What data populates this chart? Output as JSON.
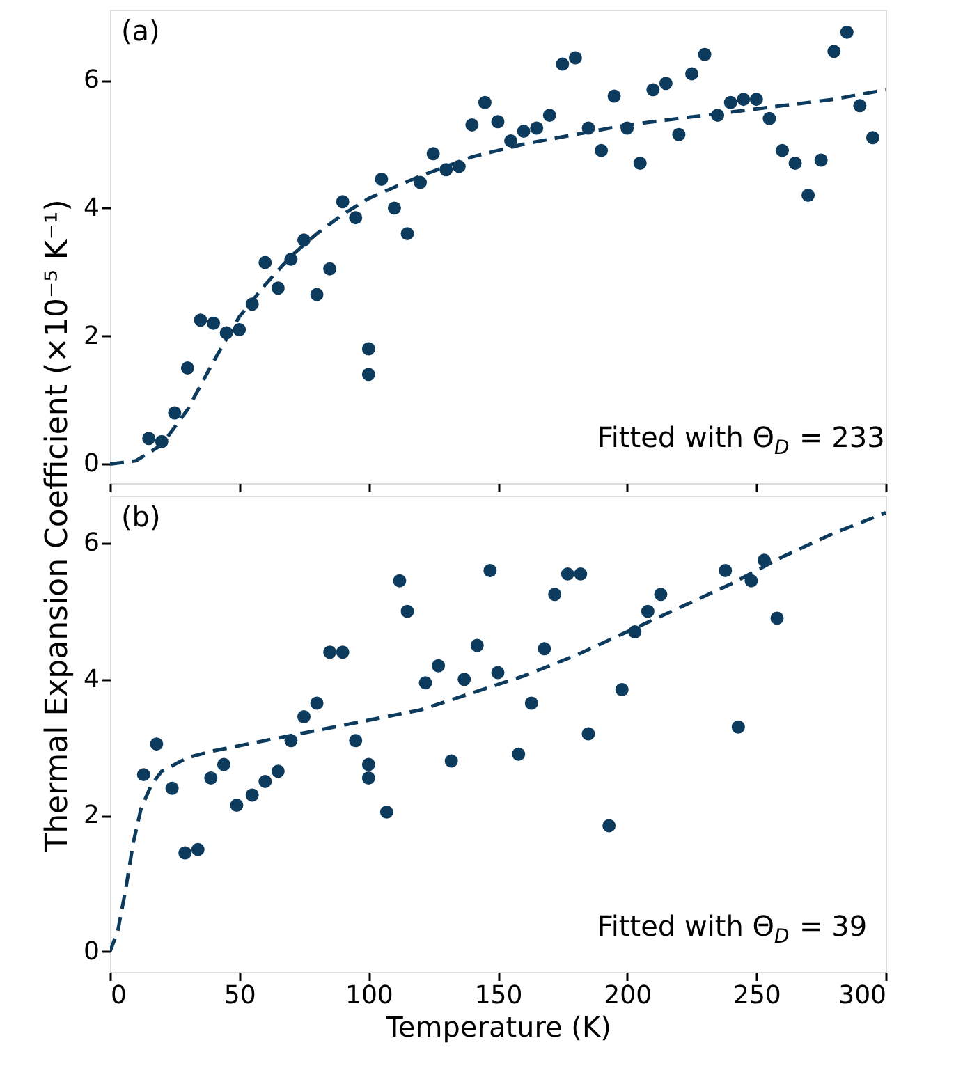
{
  "chart_data": [
    {
      "type": "scatter",
      "ylabel": "Thermal Expansion Coefficient (×10⁻⁵ K⁻¹)",
      "annotations": [
        "(a)",
        "Fitted with Θ$_{D}$ = 233"
      ],
      "xlim": [
        0,
        300
      ],
      "xticks": [
        0,
        50,
        100,
        150,
        200,
        250,
        300
      ],
      "ylim": [
        -0.3,
        7.1
      ],
      "yticks": [
        0,
        2,
        4,
        6
      ],
      "tick_labels": "y",
      "series": [
        {
          "type": "scatter",
          "marker": "circle",
          "color": "#0d3b5e",
          "x": [
            15,
            20,
            25,
            30,
            35,
            40,
            45,
            50,
            55,
            60,
            65,
            70,
            75,
            80,
            85,
            90,
            95,
            100,
            100,
            105,
            110,
            115,
            120,
            125,
            130,
            135,
            140,
            145,
            150,
            155,
            160,
            165,
            170,
            175,
            180,
            185,
            190,
            195,
            200,
            205,
            210,
            215,
            220,
            225,
            230,
            235,
            240,
            245,
            250,
            255,
            260,
            265,
            270,
            275,
            280,
            285,
            290,
            295
          ],
          "values": [
            0.4,
            0.35,
            0.8,
            1.5,
            2.25,
            2.2,
            2.05,
            2.1,
            2.5,
            3.15,
            2.75,
            3.2,
            3.5,
            2.65,
            3.05,
            4.1,
            3.85,
            1.8,
            1.4,
            4.45,
            4.0,
            3.6,
            4.4,
            4.85,
            4.6,
            4.65,
            5.3,
            5.65,
            5.35,
            5.05,
            5.2,
            5.25,
            5.45,
            6.25,
            6.35,
            5.25,
            4.9,
            5.75,
            5.25,
            4.7,
            5.85,
            5.95,
            5.15,
            6.1,
            6.4,
            5.45,
            5.65,
            5.7,
            5.7,
            5.4,
            4.9,
            4.7,
            4.2,
            4.75,
            6.45,
            6.75,
            5.6,
            5.1
          ]
        },
        {
          "type": "line",
          "line_style": "dashed",
          "color": "#0d3b5e",
          "x": [
            0,
            10,
            20,
            30,
            40,
            50,
            60,
            70,
            80,
            90,
            100,
            120,
            140,
            160,
            180,
            200,
            220,
            240,
            260,
            280,
            300
          ],
          "values": [
            0,
            0.05,
            0.3,
            0.85,
            1.6,
            2.3,
            2.8,
            3.25,
            3.6,
            3.9,
            4.15,
            4.5,
            4.8,
            5.0,
            5.15,
            5.3,
            5.4,
            5.5,
            5.6,
            5.7,
            5.85
          ]
        }
      ]
    },
    {
      "type": "scatter",
      "xlabel": "Temperature (K)",
      "annotations": [
        "(b)",
        "Fitted with Θ$_{D}$ = 39"
      ],
      "xlim": [
        0,
        300
      ],
      "xticks": [
        0,
        50,
        100,
        150,
        200,
        250,
        300
      ],
      "ylim": [
        -0.3,
        6.7
      ],
      "yticks": [
        0,
        2,
        4,
        6
      ],
      "series": [
        {
          "type": "scatter",
          "marker": "circle",
          "color": "#0d3b5e",
          "x": [
            13,
            18,
            24,
            29,
            34,
            39,
            44,
            49,
            55,
            60,
            65,
            70,
            75,
            80,
            85,
            90,
            95,
            100,
            100,
            107,
            112,
            115,
            122,
            127,
            132,
            137,
            142,
            147,
            150,
            158,
            163,
            168,
            172,
            177,
            182,
            185,
            193,
            198,
            203,
            208,
            213,
            238,
            243,
            248,
            253,
            258
          ],
          "values": [
            2.6,
            3.05,
            2.4,
            1.45,
            1.5,
            2.55,
            2.75,
            2.15,
            2.3,
            2.5,
            2.65,
            3.1,
            3.45,
            3.65,
            4.4,
            4.4,
            3.1,
            2.75,
            2.55,
            2.05,
            5.45,
            5.0,
            3.95,
            4.2,
            2.8,
            4.0,
            4.5,
            5.6,
            4.1,
            2.9,
            3.65,
            4.45,
            5.25,
            5.55,
            5.55,
            3.2,
            1.85,
            3.85,
            4.7,
            5.0,
            5.25,
            5.6,
            3.3,
            5.45,
            5.75,
            4.9
          ]
        },
        {
          "type": "line",
          "line_style": "dashed",
          "color": "#0d3b5e",
          "x": [
            0,
            3,
            6,
            9,
            12,
            16,
            20,
            30,
            40,
            60,
            80,
            100,
            120,
            140,
            160,
            180,
            200,
            220,
            240,
            260,
            280,
            300
          ],
          "values": [
            0,
            0.3,
            0.9,
            1.6,
            2.1,
            2.45,
            2.65,
            2.85,
            2.95,
            3.1,
            3.25,
            3.4,
            3.55,
            3.8,
            4.05,
            4.35,
            4.7,
            5.05,
            5.4,
            5.8,
            6.15,
            6.45
          ]
        }
      ]
    }
  ]
}
